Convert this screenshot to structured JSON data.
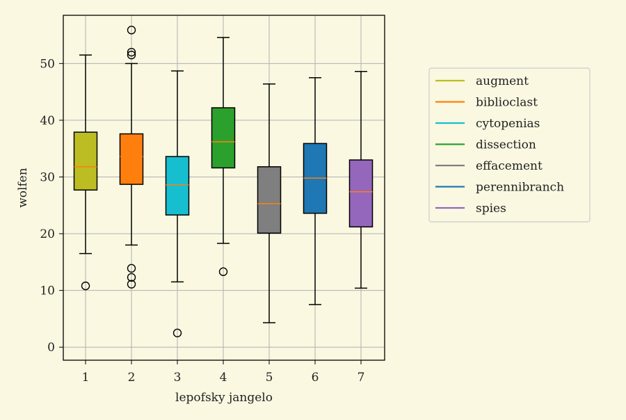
{
  "chart_data": {
    "type": "boxplot",
    "title": "",
    "xlabel": "lepofsky jangelo",
    "ylabel": "wolfen",
    "categories": [
      "1",
      "2",
      "3",
      "4",
      "5",
      "6",
      "7"
    ],
    "ylim": [
      -2.3,
      58.5
    ],
    "yticks": [
      0,
      10,
      20,
      30,
      40,
      50
    ],
    "grid": true,
    "legend_position": "right",
    "series": [
      {
        "name": "augment",
        "color": "#bcbd22",
        "whisker_low": 16.5,
        "q1": 27.7,
        "median": 31.8,
        "q3": 37.9,
        "whisker_high": 51.5,
        "outliers": [
          10.8
        ]
      },
      {
        "name": "biblioclast",
        "color": "#ff7f0e",
        "whisker_low": 18.0,
        "q1": 28.7,
        "median": 33.6,
        "q3": 37.6,
        "whisker_high": 50.0,
        "outliers": [
          55.9,
          52.0,
          51.5,
          13.9,
          12.3,
          11.1
        ]
      },
      {
        "name": "cytopenias",
        "color": "#17becf",
        "whisker_low": 11.5,
        "q1": 23.3,
        "median": 28.6,
        "q3": 33.6,
        "whisker_high": 48.7,
        "outliers": [
          2.5
        ]
      },
      {
        "name": "dissection",
        "color": "#2ca02c",
        "whisker_low": 18.3,
        "q1": 31.6,
        "median": 36.2,
        "q3": 42.2,
        "whisker_high": 54.6,
        "outliers": [
          13.3
        ]
      },
      {
        "name": "effacement",
        "color": "#7f7f7f",
        "whisker_low": 4.3,
        "q1": 20.1,
        "median": 25.3,
        "q3": 31.8,
        "whisker_high": 46.4,
        "outliers": []
      },
      {
        "name": "perennibranch",
        "color": "#1f77b4",
        "whisker_low": 7.5,
        "q1": 23.6,
        "median": 29.8,
        "q3": 35.9,
        "whisker_high": 47.5,
        "outliers": []
      },
      {
        "name": "spies",
        "color": "#9467bd",
        "whisker_low": 10.4,
        "q1": 21.2,
        "median": 27.4,
        "q3": 33.0,
        "whisker_high": 48.6,
        "outliers": []
      }
    ],
    "median_color": "#ff7f0e"
  }
}
